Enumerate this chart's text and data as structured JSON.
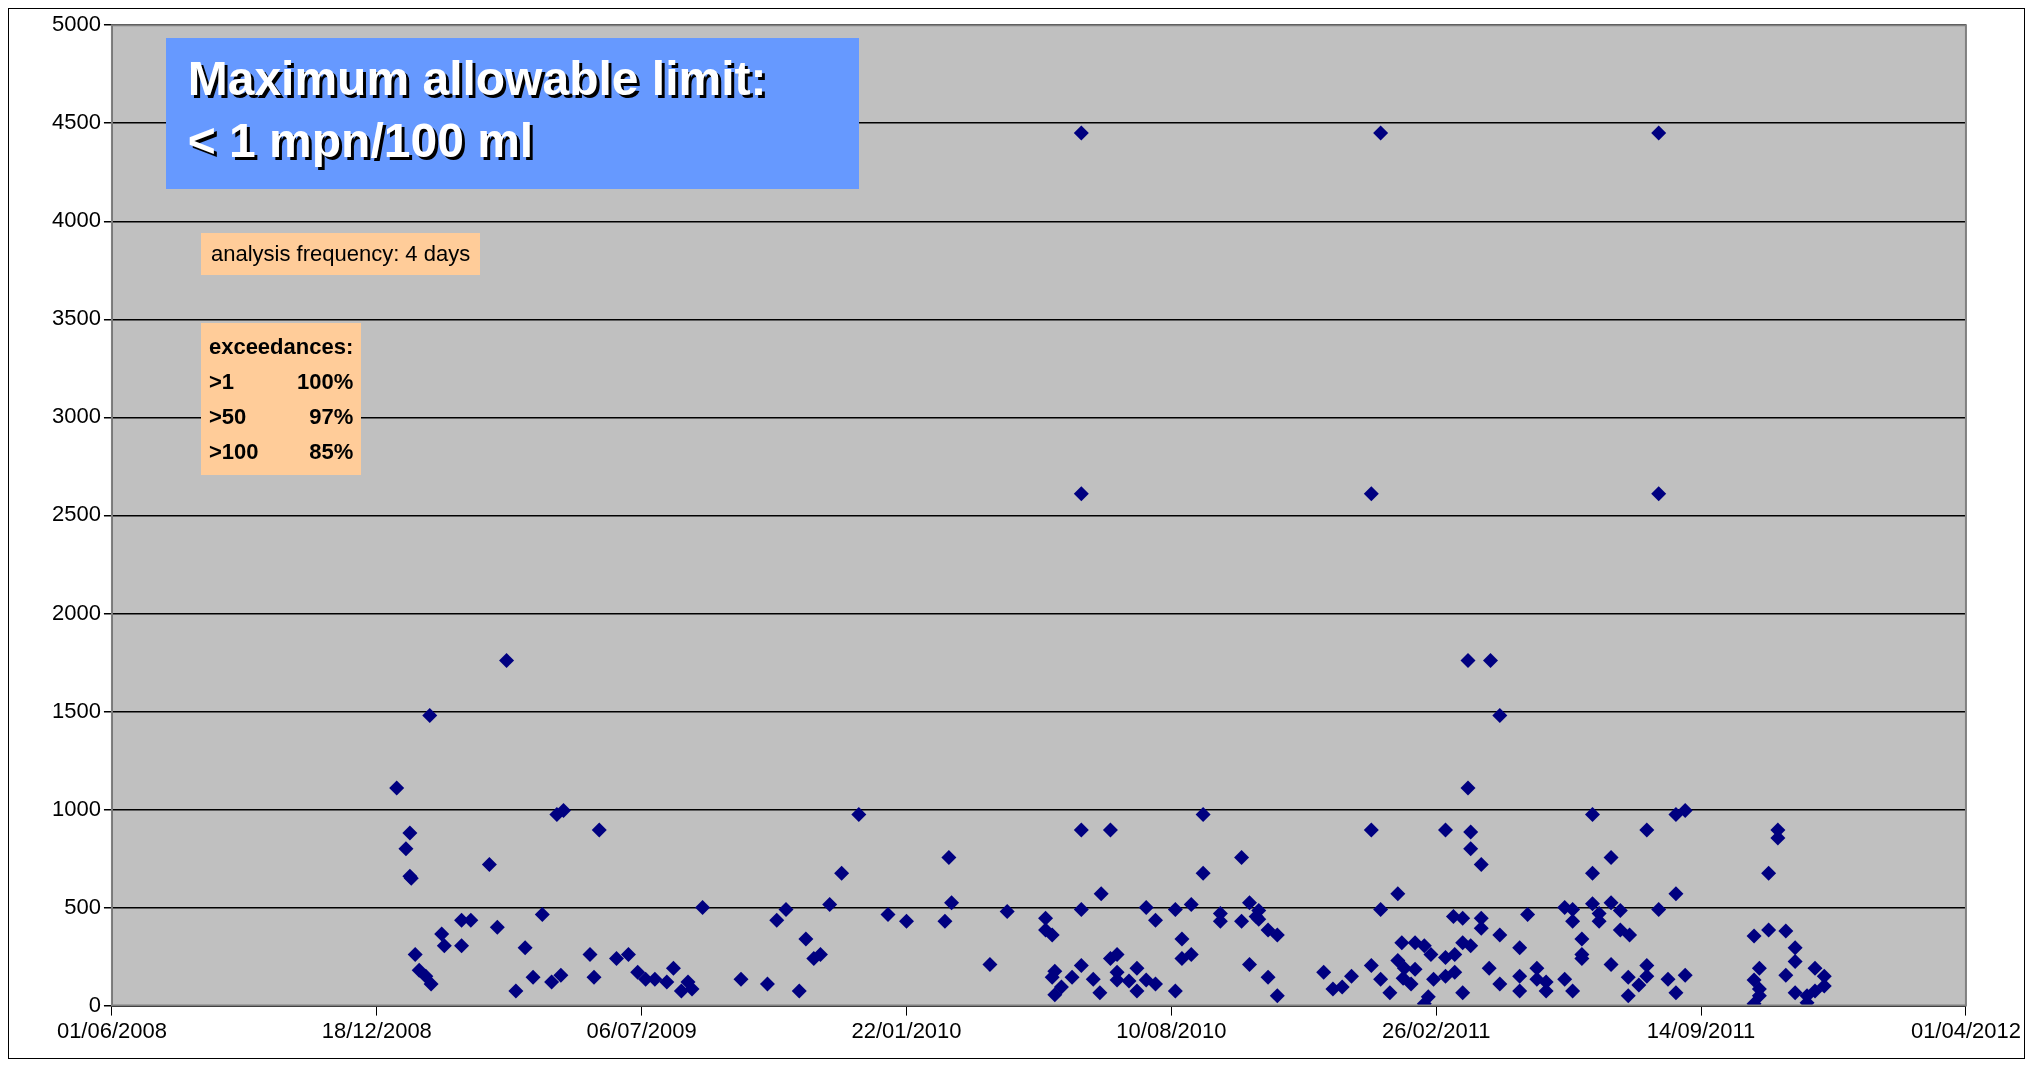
{
  "chart_data": {
    "type": "scatter",
    "marker": "diamond",
    "legend": false,
    "grid": "y",
    "xlim": [
      "2008-06-01",
      "2012-04-01"
    ],
    "xticks": [
      {
        "value": "2008-06-01",
        "label": "01/06/2008"
      },
      {
        "value": "2008-12-18",
        "label": "18/12/2008"
      },
      {
        "value": "2009-07-06",
        "label": "06/07/2009"
      },
      {
        "value": "2010-01-22",
        "label": "22/01/2010"
      },
      {
        "value": "2010-08-10",
        "label": "10/08/2010"
      },
      {
        "value": "2011-02-26",
        "label": "26/02/2011"
      },
      {
        "value": "2011-09-14",
        "label": "14/09/2011"
      },
      {
        "value": "2012-04-01",
        "label": "01/04/2012"
      }
    ],
    "ylim": [
      0,
      5000
    ],
    "yticks": [
      0,
      500,
      1000,
      1500,
      2000,
      2500,
      3000,
      3500,
      4000,
      4500,
      5000
    ],
    "annotations": [
      "Maximum allowable limit:\n< 1 mpn/100 ml",
      "analysis frequency: 4 days",
      "exceedances:\n>1 100%\n>50 97%\n>100 85%"
    ],
    "series": [
      {
        "color": "#000080",
        "x": [
          "2009-01-02",
          "2009-01-09",
          "2009-01-12",
          "2009-01-12",
          "2009-01-13",
          "2009-01-16",
          "2009-01-19",
          "2009-01-24",
          "2009-01-27",
          "2009-01-28",
          "2009-02-05",
          "2009-02-07",
          "2009-02-20",
          "2009-02-20",
          "2009-02-27",
          "2009-03-13",
          "2009-03-19",
          "2009-03-26",
          "2009-04-02",
          "2009-04-09",
          "2009-04-15",
          "2009-04-22",
          "2009-04-29",
          "2009-05-03",
          "2009-05-06",
          "2009-05-08",
          "2009-05-28",
          "2009-05-31",
          "2009-06-04",
          "2009-06-17",
          "2009-06-26",
          "2009-07-03",
          "2009-07-09",
          "2009-07-16",
          "2009-07-25",
          "2009-07-30",
          "2009-08-05",
          "2009-08-10",
          "2009-08-13",
          "2009-08-21",
          "2009-09-19",
          "2009-10-09",
          "2009-10-16",
          "2009-10-23",
          "2009-11-02",
          "2009-11-07",
          "2009-11-13",
          "2009-11-18",
          "2009-11-25",
          "2009-12-04",
          "2009-12-17",
          "2010-01-08",
          "2010-01-22",
          "2010-02-20",
          "2010-02-23",
          "2010-02-25",
          "2010-03-26",
          "2010-04-08",
          "2010-05-07",
          "2010-05-07",
          "2010-05-12",
          "2010-05-12",
          "2010-05-14",
          "2010-05-14",
          "2010-05-19",
          "2010-05-27",
          "2010-06-03",
          "2010-06-03",
          "2010-06-03",
          "2010-06-03",
          "2010-06-03",
          "2010-06-12",
          "2010-06-17",
          "2010-06-18",
          "2010-06-25",
          "2010-06-25",
          "2010-06-30",
          "2010-06-30",
          "2010-06-30",
          "2010-07-09",
          "2010-07-15",
          "2010-07-15",
          "2010-07-22",
          "2010-07-22",
          "2010-07-29",
          "2010-07-29",
          "2010-08-13",
          "2010-08-13",
          "2010-08-18",
          "2010-08-18",
          "2010-08-25",
          "2010-08-25",
          "2010-09-03",
          "2010-09-03",
          "2010-09-16",
          "2010-09-16",
          "2010-10-02",
          "2010-10-02",
          "2010-10-08",
          "2010-10-08",
          "2010-10-13",
          "2010-10-15",
          "2010-10-15",
          "2010-10-22",
          "2010-10-22",
          "2010-10-29",
          "2010-10-29",
          "2010-12-03",
          "2010-12-10",
          "2010-12-17",
          "2010-12-24",
          "2011-01-08",
          "2011-01-08",
          "2011-01-08",
          "2011-01-15",
          "2011-01-15",
          "2011-01-15",
          "2011-01-22",
          "2011-01-28",
          "2011-01-28",
          "2011-01-31",
          "2011-02-01",
          "2011-02-02",
          "2011-02-07",
          "2011-02-10",
          "2011-02-10",
          "2011-02-17",
          "2011-02-17",
          "2011-02-20",
          "2011-02-22",
          "2011-02-24",
          "2011-03-05",
          "2011-03-05",
          "2011-03-05",
          "2011-03-11",
          "2011-03-12",
          "2011-03-12",
          "2011-03-18",
          "2011-03-18",
          "2011-03-18",
          "2011-03-22",
          "2011-03-22",
          "2011-03-24",
          "2011-03-24",
          "2011-03-24",
          "2011-04-01",
          "2011-04-01",
          "2011-04-01",
          "2011-04-07",
          "2011-04-08",
          "2011-04-15",
          "2011-04-15",
          "2011-04-15",
          "2011-04-30",
          "2011-04-30",
          "2011-04-30",
          "2011-05-06",
          "2011-05-13",
          "2011-05-13",
          "2011-05-20",
          "2011-05-20",
          "2011-06-03",
          "2011-06-03",
          "2011-06-09",
          "2011-06-09",
          "2011-06-09",
          "2011-06-16",
          "2011-06-16",
          "2011-06-16",
          "2011-06-24",
          "2011-06-24",
          "2011-06-24",
          "2011-06-29",
          "2011-06-29",
          "2011-07-08",
          "2011-07-08",
          "2011-07-08",
          "2011-07-15",
          "2011-07-15",
          "2011-07-21",
          "2011-07-21",
          "2011-07-22",
          "2011-07-29",
          "2011-08-04",
          "2011-08-04",
          "2011-08-04",
          "2011-08-13",
          "2011-08-13",
          "2011-08-13",
          "2011-08-20",
          "2011-08-26",
          "2011-08-26",
          "2011-08-26",
          "2011-09-02",
          "2011-09-02",
          "2011-10-24",
          "2011-10-24",
          "2011-10-24",
          "2011-10-28",
          "2011-10-28",
          "2011-10-28",
          "2011-11-04",
          "2011-11-04",
          "2011-11-11",
          "2011-11-11",
          "2011-11-17",
          "2011-11-17",
          "2011-11-24",
          "2011-11-24",
          "2011-11-24",
          "2011-12-03",
          "2011-12-03",
          "2011-12-09",
          "2011-12-09",
          "2011-12-16",
          "2011-12-16"
        ],
        "values": [
          1110,
          800,
          880,
          660,
          650,
          260,
          180,
          150,
          1480,
          110,
          365,
          305,
          435,
          305,
          435,
          720,
          400,
          1760,
          75,
          295,
          145,
          465,
          120,
          975,
          155,
          995,
          260,
          145,
          895,
          240,
          260,
          170,
          135,
          135,
          120,
          190,
          75,
          120,
          85,
          500,
          135,
          110,
          435,
          490,
          75,
          340,
          240,
          260,
          515,
          675,
          975,
          465,
          430,
          430,
          755,
          525,
          210,
          480,
          445,
          385,
          360,
          145,
          175,
          55,
          95,
          145,
          4450,
          2610,
          895,
          490,
          205,
          135,
          65,
          570,
          895,
          240,
          260,
          170,
          130,
          125,
          190,
          75,
          130,
          500,
          435,
          110,
          490,
          75,
          340,
          240,
          515,
          260,
          975,
          675,
          470,
          430,
          755,
          430,
          525,
          210,
          455,
          485,
          440,
          385,
          145,
          360,
          50,
          170,
          85,
          95,
          150,
          2610,
          895,
          205,
          4450,
          490,
          135,
          65,
          570,
          230,
          320,
          140,
          190,
          110,
          320,
          185,
          305,
          10,
          45,
          260,
          135,
          895,
          245,
          150,
          455,
          260,
          170,
          445,
          320,
          65,
          1760,
          1110,
          885,
          800,
          305,
          720,
          445,
          395,
          190,
          1760,
          1480,
          360,
          110,
          295,
          150,
          75,
          465,
          190,
          135,
          120,
          75,
          500,
          135,
          490,
          430,
          75,
          340,
          260,
          240,
          975,
          675,
          520,
          470,
          430,
          755,
          525,
          210,
          485,
          385,
          145,
          50,
          360,
          105,
          895,
          205,
          150,
          4450,
          2610,
          490,
          135,
          975,
          570,
          65,
          995,
          155,
          355,
          130,
          10,
          190,
          85,
          50,
          675,
          385,
          895,
          855,
          380,
          155,
          295,
          225,
          65,
          50,
          15,
          190,
          75,
          150,
          100
        ]
      }
    ]
  }
}
